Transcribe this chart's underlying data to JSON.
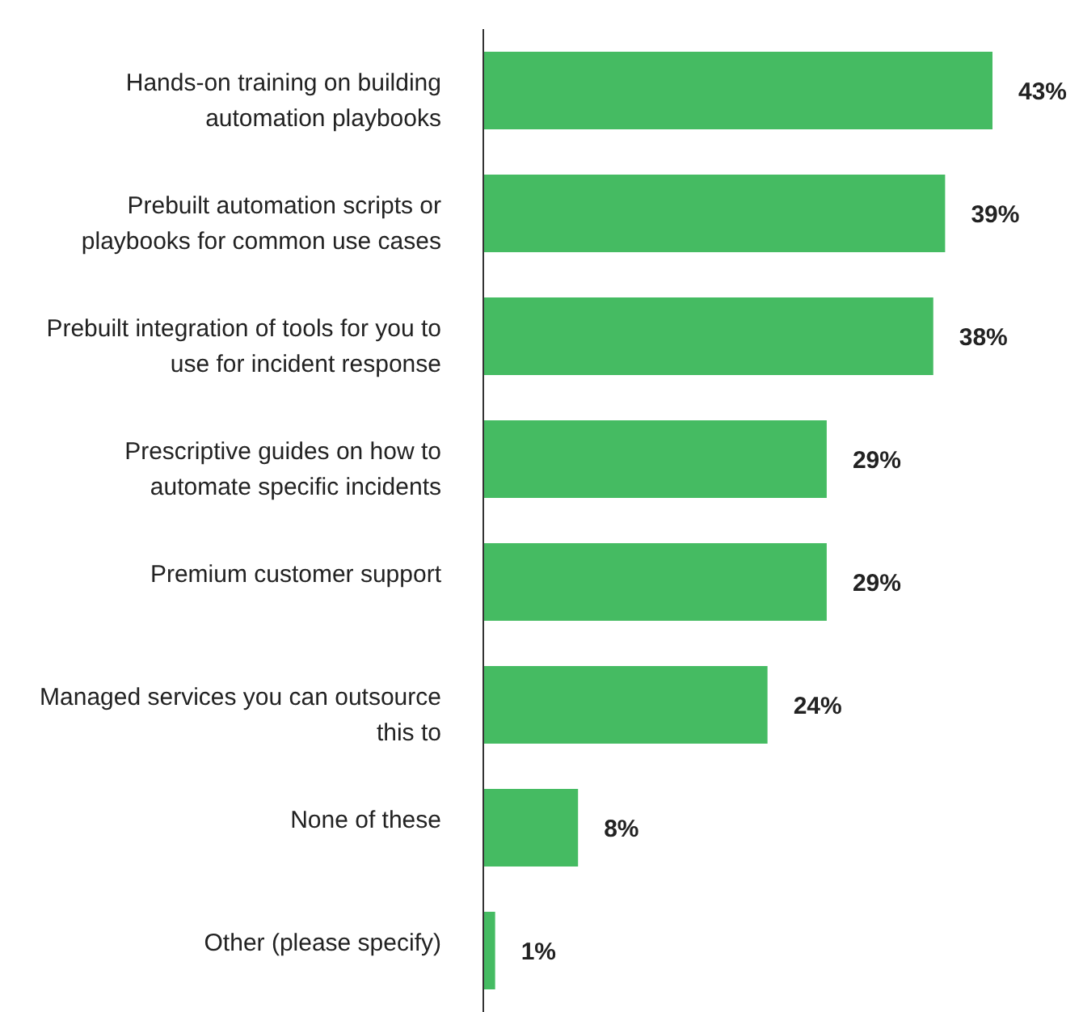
{
  "chart_data": {
    "type": "bar",
    "orientation": "horizontal",
    "categories": [
      "Hands-on training on building automation playbooks",
      "Prebuilt automation scripts or playbooks for common use cases",
      "Prebuilt integration of tools for you to use for incident response",
      "Prescriptive guides on how to automate specific incidents",
      "Premium customer support",
      "Managed services you can outsource this to",
      "None of these",
      "Other (please specify)"
    ],
    "values": [
      43,
      39,
      38,
      29,
      29,
      24,
      8,
      1
    ],
    "value_labels": [
      "43%",
      "39%",
      "38%",
      "29%",
      "29%",
      "24%",
      "8%",
      "1%"
    ],
    "color": "#45bb62",
    "grid": false,
    "legend": false,
    "tick_labels": "y"
  }
}
